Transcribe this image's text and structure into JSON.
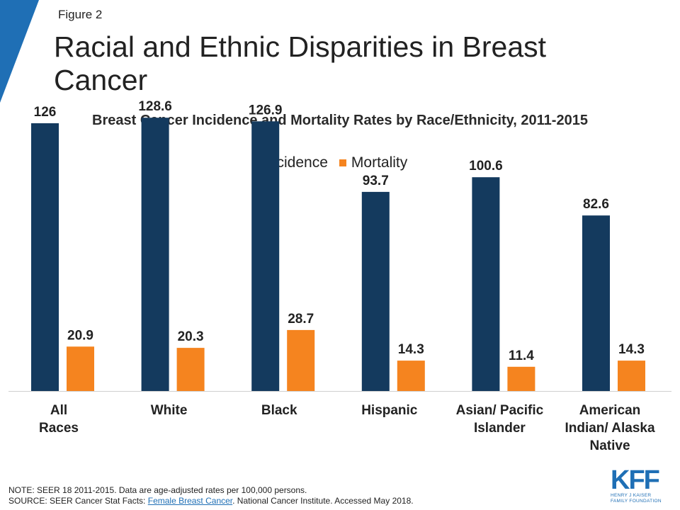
{
  "header": {
    "figure_label": "Figure 2",
    "title": "Racial and Ethnic Disparities in Breast Cancer"
  },
  "colors": {
    "incidence": "#143A5E",
    "mortality": "#F5841F",
    "accent": "#1F6FB5"
  },
  "chart_data": {
    "type": "bar",
    "title": "Breast Cancer Incidence and Mortality Rates by Race/Ethnicity, 2011-2015",
    "categories": [
      "All Races",
      "White",
      "Black",
      "Hispanic",
      "Asian/ Pacific Islander",
      "American Indian/ Alaska Native"
    ],
    "series": [
      {
        "name": "Incidence",
        "values": [
          126,
          128.6,
          126.9,
          93.7,
          100.6,
          82.6
        ],
        "labels": [
          "126",
          "128.6",
          "126.9",
          "93.7",
          "100.6",
          "82.6"
        ]
      },
      {
        "name": "Mortality",
        "values": [
          20.9,
          20.3,
          28.7,
          14.3,
          11.4,
          14.3
        ],
        "labels": [
          "20.9",
          "20.3",
          "28.7",
          "14.3",
          "11.4",
          "14.3"
        ]
      }
    ],
    "ylim": [
      0,
      140
    ],
    "grid": false,
    "legend": "top-center"
  },
  "footer": {
    "note": "NOTE: SEER 18 2011-2015.  Data are age-adjusted  rates per 100,000 persons.",
    "source_prefix": "SOURCE: SEER Cancer Stat Facts: ",
    "source_link": "Female Breast Cancer",
    "source_suffix": ". National Cancer Institute. Accessed May 2018."
  },
  "logo": {
    "letters": "KFF",
    "sub_line1": "HENRY J KAISER",
    "sub_line2": "FAMILY FOUNDATION"
  }
}
